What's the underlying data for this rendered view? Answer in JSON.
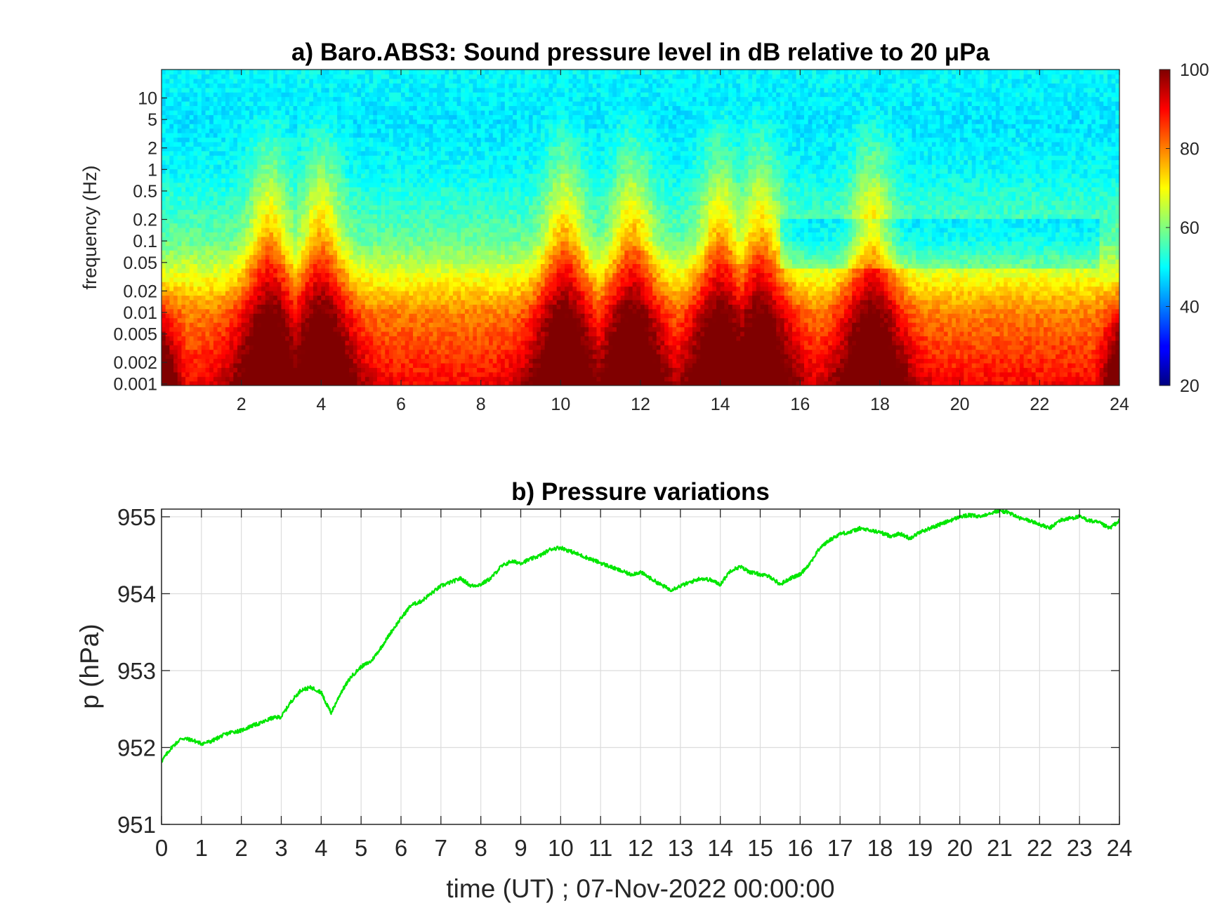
{
  "chart_data": [
    {
      "type": "heatmap",
      "title": "a) Baro.ABS3: Sound pressure level in dB relative to 20 μPa",
      "xlabel": "",
      "ylabel": "frequency (Hz)",
      "xlim": [
        0,
        24
      ],
      "ylim": [
        0.00095,
        25
      ],
      "yscale": "log",
      "xticks": [
        2,
        4,
        6,
        8,
        10,
        12,
        14,
        16,
        18,
        20,
        22,
        24
      ],
      "yticks": [
        0.001,
        0.002,
        0.005,
        0.01,
        0.02,
        0.05,
        0.1,
        0.2,
        0.5,
        1,
        2,
        5,
        10
      ],
      "ytick_labels": [
        "0.001",
        "0.002",
        "0.005",
        "0.01",
        "0.02",
        "0.05",
        "0.1",
        "0.2",
        "0.5",
        "1",
        "2",
        "5",
        "10"
      ],
      "colormap": "jet",
      "clim": [
        20,
        100
      ],
      "colorbar_ticks": [
        20,
        40,
        60,
        80,
        100
      ],
      "colorbar_tick_labels": [
        "20",
        "40",
        "60",
        "80",
        "100"
      ],
      "high_activity_hours": [
        2.7,
        4.0,
        10.1,
        11.8,
        14.0,
        15.0,
        17.8
      ],
      "background_level_db": {
        "above_5Hz": 48,
        "1Hz": 50,
        "0.1Hz": 58,
        "0.01Hz": 80,
        "0.001Hz": 90
      }
    },
    {
      "type": "line",
      "title": "b) Pressure variations",
      "xlabel": "time (UT) ; 07-Nov-2022 00:00:00",
      "ylabel": "p (hPa)",
      "xlim": [
        0,
        24
      ],
      "ylim": [
        951,
        955.1
      ],
      "xticks": [
        0,
        1,
        2,
        3,
        4,
        5,
        6,
        7,
        8,
        9,
        10,
        11,
        12,
        13,
        14,
        15,
        16,
        17,
        18,
        19,
        20,
        21,
        22,
        23,
        24
      ],
      "xtick_labels": [
        "0",
        "1",
        "2",
        "3",
        "4",
        "5",
        "6",
        "7",
        "8",
        "9",
        "10",
        "11",
        "12",
        "13",
        "14",
        "15",
        "16",
        "17",
        "18",
        "19",
        "20",
        "21",
        "22",
        "23",
        "24"
      ],
      "yticks": [
        951,
        952,
        953,
        954,
        955
      ],
      "ytick_labels": [
        "951",
        "952",
        "953",
        "954",
        "955"
      ],
      "grid": true,
      "series": [
        {
          "color": "#00e600",
          "x": [
            0,
            0.25,
            0.5,
            0.75,
            1.0,
            1.25,
            1.5,
            1.75,
            2.0,
            2.25,
            2.5,
            2.75,
            3.0,
            3.25,
            3.5,
            3.75,
            4.0,
            4.1,
            4.25,
            4.5,
            4.75,
            5.0,
            5.25,
            5.5,
            5.75,
            6.0,
            6.25,
            6.5,
            6.75,
            7.0,
            7.25,
            7.5,
            7.75,
            8.0,
            8.25,
            8.5,
            8.75,
            9.0,
            9.25,
            9.5,
            9.75,
            10.0,
            10.25,
            10.5,
            10.75,
            11.0,
            11.25,
            11.5,
            11.75,
            12.0,
            12.25,
            12.5,
            12.75,
            13.0,
            13.25,
            13.5,
            13.75,
            14.0,
            14.25,
            14.5,
            14.75,
            15.0,
            15.25,
            15.5,
            15.75,
            16.0,
            16.25,
            16.5,
            16.75,
            17.0,
            17.25,
            17.5,
            17.75,
            18.0,
            18.25,
            18.5,
            18.75,
            19.0,
            19.25,
            19.5,
            19.75,
            20.0,
            20.25,
            20.5,
            20.75,
            21.0,
            21.25,
            21.5,
            21.75,
            22.0,
            22.25,
            22.5,
            22.75,
            23.0,
            23.25,
            23.5,
            23.75,
            24.0
          ],
          "values": [
            951.82,
            952.0,
            952.12,
            952.1,
            952.05,
            952.08,
            952.15,
            952.2,
            952.22,
            952.28,
            952.32,
            952.38,
            952.4,
            952.6,
            952.75,
            952.78,
            952.72,
            952.6,
            952.45,
            952.72,
            952.92,
            953.05,
            953.12,
            953.3,
            953.5,
            953.68,
            953.85,
            953.9,
            954.0,
            954.1,
            954.15,
            954.2,
            954.1,
            954.12,
            954.2,
            954.35,
            954.42,
            954.4,
            954.45,
            954.5,
            954.58,
            954.6,
            954.55,
            954.5,
            954.45,
            954.4,
            954.35,
            954.3,
            954.25,
            954.28,
            954.2,
            954.12,
            954.05,
            954.1,
            954.15,
            954.2,
            954.18,
            954.12,
            954.3,
            954.35,
            954.28,
            954.25,
            954.22,
            954.12,
            954.2,
            954.25,
            954.4,
            954.6,
            954.7,
            954.78,
            954.8,
            954.85,
            954.82,
            954.8,
            954.75,
            954.78,
            954.72,
            954.8,
            954.85,
            954.9,
            954.95,
            955.0,
            955.02,
            955.0,
            955.05,
            955.08,
            955.05,
            954.98,
            954.95,
            954.9,
            954.85,
            954.95,
            954.98,
            955.0,
            954.95,
            954.92,
            954.85,
            954.95
          ]
        }
      ]
    }
  ]
}
